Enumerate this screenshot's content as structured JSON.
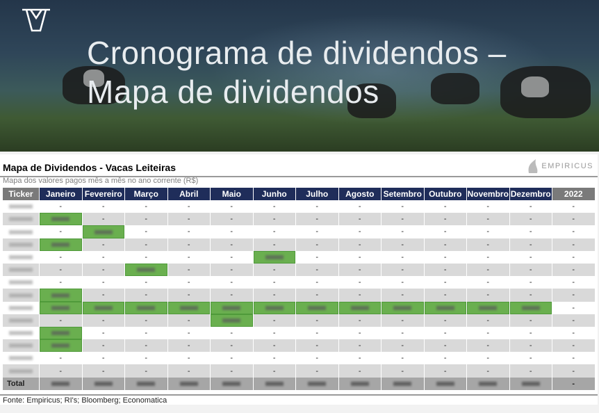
{
  "hero": {
    "title": "Cronograma de dividendos –\nMapa de dividendos"
  },
  "table_title": "Mapa de Dividendos - Vacas Leiteiras",
  "brand": "EMPIRICUS",
  "subtitle": "Mapa dos valores pagos mês a mês no ano corrente (R$)",
  "columns": [
    "Ticker",
    "Janeiro",
    "Fevereiro",
    "Março",
    "Abril",
    "Maio",
    "Junho",
    "Julho",
    "Agosto",
    "Setembro",
    "Outubro",
    "Novembro",
    "Dezembro",
    "2022"
  ],
  "empty_value": "-",
  "rows": [
    {
      "paid": []
    },
    {
      "paid": [
        0
      ]
    },
    {
      "paid": [
        1
      ]
    },
    {
      "paid": [
        0
      ]
    },
    {
      "paid": [
        5
      ]
    },
    {
      "paid": [
        2
      ]
    },
    {
      "paid": []
    },
    {
      "paid": [
        0
      ]
    },
    {
      "paid": [
        0,
        1,
        2,
        3,
        4,
        5,
        6,
        7,
        8,
        9,
        10,
        11
      ]
    },
    {
      "paid": [
        4
      ]
    },
    {
      "paid": [
        0
      ]
    },
    {
      "paid": [
        0
      ]
    },
    {
      "paid": []
    },
    {
      "paid": []
    }
  ],
  "total_label": "Total",
  "source": "Fonte: Empiricus; RI's; Bloomberg; Economatica",
  "colors": {
    "header": "#1f2d5a",
    "paid": "#6aaf4f",
    "stripe": "#d9d9d9",
    "total": "#a6a6a6"
  }
}
